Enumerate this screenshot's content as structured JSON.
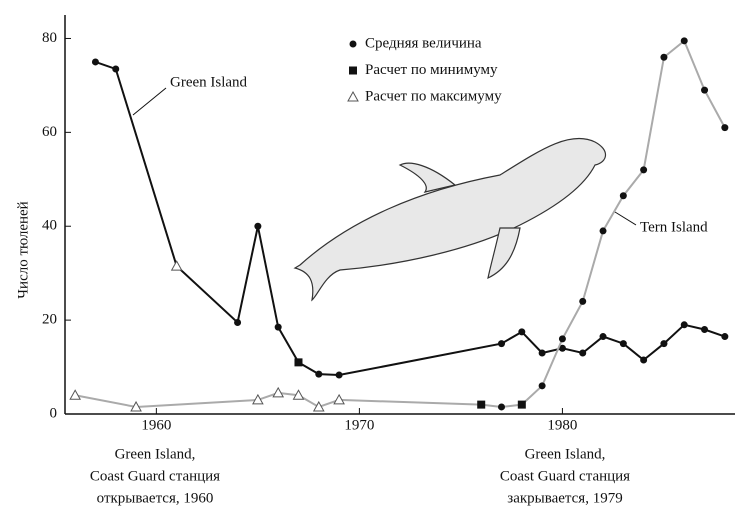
{
  "chart_data": {
    "type": "line",
    "y_label": "Число тюленей",
    "xlim": [
      1955.5,
      1988.5
    ],
    "xticks": [
      1960,
      1970,
      1980
    ],
    "ylim": [
      0,
      85
    ],
    "yticks": [
      0,
      20,
      40,
      60,
      80
    ],
    "legend": [
      {
        "marker": "circle",
        "label": "Средняя величина"
      },
      {
        "marker": "square",
        "label": "Расчет по минимуму"
      },
      {
        "marker": "triangle",
        "label": "Расчет по максимуму"
      }
    ],
    "series": [
      {
        "name": "Green Island",
        "color": "#111111",
        "x": [
          1957,
          1958,
          1961,
          1964,
          1965,
          1966,
          1967,
          1968,
          1969,
          1977,
          1978,
          1979,
          1980,
          1981,
          1982,
          1983,
          1984,
          1985,
          1986,
          1987,
          1988
        ],
        "values": [
          75,
          73.5,
          31.5,
          19.5,
          40,
          18.5,
          11,
          8.5,
          8.3,
          15,
          17.5,
          13,
          14,
          13,
          16.5,
          15,
          11.5,
          15,
          19,
          18,
          16.5
        ],
        "markers": [
          "circle",
          "circle",
          "triangle",
          "circle",
          "circle",
          "circle",
          "square",
          "circle",
          "circle",
          "circle",
          "circle",
          "circle",
          "circle",
          "circle",
          "circle",
          "circle",
          "circle",
          "circle",
          "circle",
          "circle",
          "circle"
        ]
      },
      {
        "name": "Tern Island",
        "color": "#aaaaaa",
        "x": [
          1956,
          1959,
          1965,
          1966,
          1967,
          1968,
          1969,
          1976,
          1977,
          1978,
          1979,
          1980,
          1981,
          1982,
          1983,
          1984,
          1985,
          1986,
          1987,
          1988
        ],
        "values": [
          4,
          1.5,
          3,
          4.5,
          4,
          1.5,
          3,
          2,
          1.5,
          2,
          6,
          16,
          24,
          39,
          46.5,
          52,
          76,
          79.5,
          69,
          61
        ],
        "markers": [
          "triangle",
          "triangle",
          "triangle",
          "triangle",
          "triangle",
          "triangle",
          "triangle",
          "square",
          "circle",
          "square",
          "circle",
          "circle",
          "circle",
          "circle",
          "circle",
          "circle",
          "circle",
          "circle",
          "circle",
          "circle"
        ]
      }
    ],
    "annotations": [
      {
        "lines": [
          "Green Island,",
          "Coast Guard станция",
          "открывается, 1960"
        ]
      },
      {
        "lines": [
          "Green Island,",
          "Coast Guard станция",
          "закрывается, 1979"
        ]
      }
    ]
  }
}
